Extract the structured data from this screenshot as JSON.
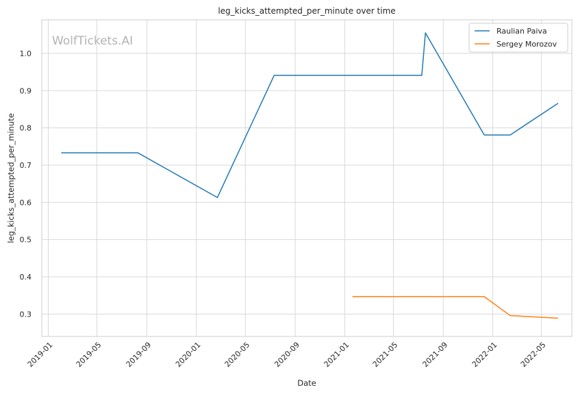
{
  "chart_data": {
    "type": "line",
    "title": "leg_kicks_attempted_per_minute over time",
    "xlabel": "Date",
    "ylabel": "leg_kicks_attempted_per_minute",
    "watermark": "WolfTickets.AI",
    "grid": true,
    "legend_position": "top-right",
    "xlim": [
      "2018-12-16",
      "2022-07-15"
    ],
    "ylim": [
      0.24,
      1.09
    ],
    "x_ticks": [
      "2019-01",
      "2019-05",
      "2019-09",
      "2020-01",
      "2020-05",
      "2020-09",
      "2021-01",
      "2021-05",
      "2021-09",
      "2022-01",
      "2022-05"
    ],
    "y_ticks": [
      0.3,
      0.4,
      0.5,
      0.6,
      0.7,
      0.8,
      0.9,
      1.0
    ],
    "y_tick_labels": [
      "0.3",
      "0.4",
      "0.5",
      "0.6",
      "0.7",
      "0.8",
      "0.9",
      "1.0"
    ],
    "series": [
      {
        "name": "Raulian Paiva",
        "color": "#1f77b4",
        "points": [
          {
            "x": "2019-02-02",
            "y": 0.733
          },
          {
            "x": "2019-08-10",
            "y": 0.733
          },
          {
            "x": "2020-02-22",
            "y": 0.613
          },
          {
            "x": "2020-07-11",
            "y": 0.941
          },
          {
            "x": "2021-07-10",
            "y": 0.941
          },
          {
            "x": "2021-07-19",
            "y": 1.055
          },
          {
            "x": "2021-12-11",
            "y": 0.781
          },
          {
            "x": "2022-02-13",
            "y": 0.781
          },
          {
            "x": "2022-06-11",
            "y": 0.866
          }
        ]
      },
      {
        "name": "Sergey Morozov",
        "color": "#ff7f0e",
        "points": [
          {
            "x": "2021-01-20",
            "y": 0.347
          },
          {
            "x": "2021-12-11",
            "y": 0.347
          },
          {
            "x": "2022-02-13",
            "y": 0.296
          },
          {
            "x": "2022-06-11",
            "y": 0.289
          }
        ]
      }
    ]
  }
}
